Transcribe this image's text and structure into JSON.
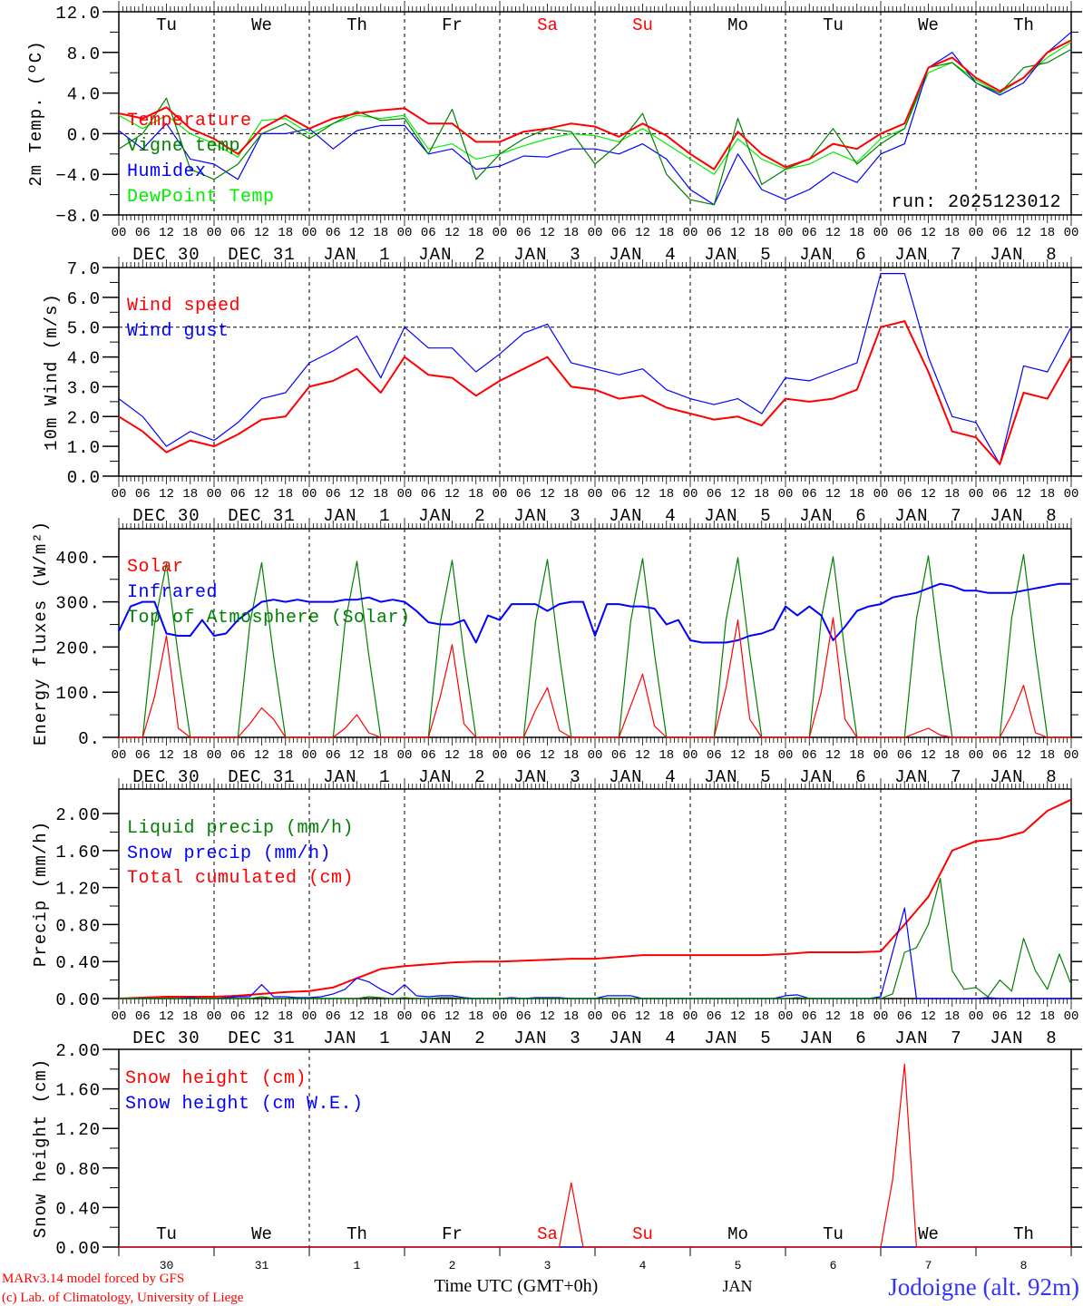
{
  "time_axis": {
    "hour_labels": [
      "00",
      "06",
      "12",
      "18"
    ],
    "final_hour_label": "00",
    "date_labels": [
      "DEC 30",
      "DEC 31",
      "JAN  1",
      "JAN  2",
      "JAN  3",
      "JAN  4",
      "JAN  5",
      "JAN  6",
      "JAN  7",
      "JAN  8"
    ],
    "weekdays": [
      "Tu",
      "We",
      "Th",
      "Fr",
      "Sa",
      "Su",
      "Mo",
      "Tu",
      "We",
      "Th"
    ],
    "weekend_flags": [
      false,
      false,
      false,
      false,
      true,
      true,
      false,
      false,
      false,
      false
    ],
    "day_numbers": [
      "30",
      "31",
      "1",
      "2",
      "3",
      "4",
      "5",
      "6",
      "7",
      "8"
    ],
    "month_label": "JAN",
    "xlabel": "Time UTC (GMT+0h)",
    "weekday_color": "#000000",
    "weekend_color": "#ff0000"
  },
  "footer": {
    "model": "MARv3.14 model forced by GFS",
    "copyright": "(c) Lab. of Climatology, University of Liege",
    "station": "Jodoigne (alt. 92m)"
  },
  "chart_data": [
    {
      "type": "line",
      "ylabel": "2m Temp. (ºC)",
      "ylim": [
        -8,
        12
      ],
      "yticks": [
        -8,
        -4,
        0,
        4,
        8,
        12
      ],
      "yticklabels": [
        "−8.0",
        "−4.0",
        "0.0",
        "4.0",
        "8.0",
        "12.0"
      ],
      "ref_line": 0,
      "annotation": "run: 2025123012",
      "step_hours": 6,
      "series": [
        {
          "name": "Temperature",
          "color": "#ff0000",
          "values": [
            2.0,
            1.5,
            2.6,
            0.5,
            -0.5,
            -2.0,
            0.5,
            1.8,
            0.5,
            1.5,
            2.0,
            2.3,
            2.5,
            1.0,
            1.0,
            -0.8,
            -0.8,
            0.2,
            0.5,
            1.0,
            0.7,
            -0.3,
            1.0,
            -0.2,
            -2.0,
            -3.5,
            0.2,
            -2.0,
            -3.3,
            -2.5,
            -1.0,
            -1.5,
            0.0,
            1.0,
            6.5,
            7.5,
            5.5,
            4.2,
            5.5,
            8.0,
            9.2
          ]
        },
        {
          "name": "Vigne temp",
          "color": "#008000",
          "values": [
            -1.5,
            0.0,
            3.5,
            -3.5,
            -4.5,
            -3.0,
            0.0,
            1.0,
            -0.5,
            1.0,
            2.2,
            1.3,
            1.5,
            -2.0,
            2.4,
            -4.5,
            -2.0,
            -0.5,
            0.5,
            0.2,
            -3.0,
            -1.0,
            2.0,
            -4.0,
            -6.5,
            -7.0,
            1.5,
            -5.0,
            -3.5,
            -2.5,
            0.5,
            -3.0,
            -1.0,
            0.5,
            6.5,
            7.0,
            5.0,
            4.0,
            6.5,
            7.0,
            8.3
          ]
        },
        {
          "name": "Humidex",
          "color": "#0000ff",
          "values": [
            0.3,
            -1.5,
            1.0,
            -2.5,
            -3.0,
            -4.5,
            0.0,
            0.0,
            0.5,
            -1.5,
            0.3,
            0.8,
            0.8,
            -2.0,
            -1.5,
            -3.5,
            -3.2,
            -2.2,
            -2.3,
            -1.5,
            -1.5,
            -2.0,
            -1.0,
            -2.5,
            -5.5,
            -7.0,
            -2.0,
            -5.5,
            -6.5,
            -5.5,
            -3.8,
            -4.8,
            -2.0,
            -1.0,
            6.5,
            8.0,
            5.0,
            3.8,
            5.0,
            8.0,
            10.0
          ]
        },
        {
          "name": "DewPoint Temp",
          "color": "#00ee00",
          "values": [
            1.8,
            0.5,
            1.8,
            0.0,
            -1.0,
            -2.3,
            1.3,
            1.5,
            0.0,
            1.0,
            1.8,
            1.5,
            1.8,
            -1.5,
            -1.0,
            -2.5,
            -2.0,
            -1.2,
            -0.5,
            0.0,
            -0.2,
            -0.8,
            0.5,
            -1.0,
            -2.5,
            -4.0,
            -0.5,
            -2.5,
            -3.5,
            -3.0,
            -1.8,
            -2.8,
            -0.5,
            0.5,
            6.0,
            7.0,
            5.3,
            4.0,
            5.5,
            7.5,
            9.0
          ]
        }
      ]
    },
    {
      "type": "line",
      "ylabel": "10m Wind (m/s)",
      "ylim": [
        0,
        7
      ],
      "yticks": [
        0,
        1,
        2,
        3,
        4,
        5,
        6,
        7
      ],
      "yticklabels": [
        "0.0",
        "1.0",
        "2.0",
        "3.0",
        "4.0",
        "5.0",
        "6.0",
        "7.0"
      ],
      "ref_line": 5,
      "step_hours": 6,
      "series": [
        {
          "name": "Wind speed",
          "color": "#ff0000",
          "values": [
            2.0,
            1.5,
            0.8,
            1.2,
            1.0,
            1.4,
            1.9,
            2.0,
            3.0,
            3.2,
            3.6,
            2.8,
            4.0,
            3.4,
            3.3,
            2.7,
            3.2,
            3.6,
            4.0,
            3.0,
            2.9,
            2.6,
            2.7,
            2.3,
            2.1,
            1.9,
            2.0,
            1.7,
            2.6,
            2.5,
            2.6,
            2.9,
            5.0,
            5.2,
            3.5,
            1.5,
            1.3,
            0.4,
            2.8,
            2.6,
            4.0
          ]
        },
        {
          "name": "Wind gust",
          "color": "#0000ff",
          "values": [
            2.6,
            2.0,
            1.0,
            1.5,
            1.2,
            1.8,
            2.6,
            2.8,
            3.8,
            4.2,
            4.7,
            3.3,
            5.0,
            4.3,
            4.3,
            3.5,
            4.1,
            4.8,
            5.1,
            3.8,
            3.6,
            3.4,
            3.6,
            2.9,
            2.6,
            2.4,
            2.6,
            2.1,
            3.3,
            3.2,
            3.5,
            3.8,
            6.8,
            6.8,
            4.0,
            2.0,
            1.8,
            0.4,
            3.7,
            3.5,
            5.0
          ]
        }
      ]
    },
    {
      "type": "line",
      "ylabel": "Energy fluxes (W/m²)",
      "ylim": [
        0,
        462
      ],
      "yticks": [
        0,
        100,
        200,
        300,
        400
      ],
      "yticklabels": [
        "0.",
        "100.",
        "200.",
        "300.",
        "400."
      ],
      "step_hours": 3,
      "series": [
        {
          "name": "Solar",
          "color": "#ff0000",
          "values": [
            0,
            0,
            0,
            90,
            225,
            20,
            0,
            0,
            0,
            0,
            0,
            30,
            65,
            40,
            0,
            0,
            0,
            0,
            0,
            20,
            50,
            10,
            0,
            0,
            0,
            0,
            0,
            90,
            205,
            30,
            0,
            0,
            0,
            0,
            0,
            60,
            110,
            15,
            0,
            0,
            0,
            0,
            0,
            70,
            140,
            25,
            0,
            0,
            0,
            0,
            0,
            110,
            260,
            40,
            0,
            0,
            0,
            0,
            0,
            100,
            265,
            40,
            0,
            0,
            0,
            0,
            0,
            10,
            20,
            5,
            0,
            0,
            0,
            0,
            0,
            50,
            115,
            10,
            0,
            0,
            0
          ]
        },
        {
          "name": "Infrared",
          "color": "#0000ff",
          "values": [
            235,
            290,
            300,
            300,
            230,
            225,
            225,
            260,
            225,
            230,
            260,
            280,
            300,
            305,
            300,
            305,
            300,
            300,
            300,
            305,
            305,
            310,
            300,
            305,
            300,
            280,
            255,
            250,
            250,
            260,
            210,
            270,
            260,
            295,
            295,
            295,
            280,
            295,
            300,
            300,
            225,
            295,
            295,
            290,
            290,
            285,
            250,
            260,
            215,
            210,
            210,
            210,
            215,
            225,
            230,
            240,
            290,
            270,
            290,
            270,
            215,
            245,
            280,
            290,
            295,
            310,
            315,
            320,
            330,
            340,
            335,
            325,
            325,
            320,
            320,
            320,
            325,
            330,
            335,
            340,
            340
          ]
        },
        {
          "name": "Top of Atmosphere (Solar)",
          "color": "#008000",
          "values": [
            0,
            0,
            0,
            250,
            385,
            180,
            0,
            0,
            0,
            0,
            0,
            250,
            387,
            180,
            0,
            0,
            0,
            0,
            0,
            252,
            390,
            182,
            0,
            0,
            0,
            0,
            0,
            254,
            392,
            183,
            0,
            0,
            0,
            0,
            0,
            256,
            394,
            184,
            0,
            0,
            0,
            0,
            0,
            258,
            396,
            185,
            0,
            0,
            0,
            0,
            0,
            260,
            398,
            186,
            0,
            0,
            0,
            0,
            0,
            262,
            400,
            187,
            0,
            0,
            0,
            0,
            0,
            263,
            402,
            188,
            0,
            0,
            0,
            0,
            0,
            265,
            405,
            190,
            0,
            0,
            0
          ]
        }
      ]
    },
    {
      "type": "line",
      "ylabel": "Precip (mm/h)",
      "ylim": [
        0,
        2.265
      ],
      "yticks": [
        0,
        0.4,
        0.8,
        1.2,
        1.6,
        2.0
      ],
      "yticklabels": [
        "0.00",
        "0.40",
        "0.80",
        "1.20",
        "1.60",
        "2.00"
      ],
      "step_hours": 3,
      "series": [
        {
          "name": "Liquid precip (mm/h)",
          "color": "#008000",
          "values": [
            0,
            0,
            0,
            0,
            0,
            0,
            0,
            0,
            0,
            0,
            0,
            0,
            0.02,
            0,
            0,
            0,
            0,
            0,
            0,
            0,
            0,
            0.02,
            0.01,
            0,
            0.01,
            0,
            0,
            0.01,
            0.01,
            0,
            0,
            0,
            0,
            0,
            0,
            0,
            0,
            0,
            0,
            0,
            0,
            0,
            0,
            0,
            0,
            0,
            0,
            0,
            0,
            0,
            0,
            0,
            0,
            0,
            0,
            0,
            0,
            0.01,
            0,
            0,
            0,
            0,
            0,
            0,
            0,
            0.05,
            0.5,
            0.55,
            0.8,
            1.3,
            0.3,
            0.1,
            0.12,
            0.02,
            0.2,
            0.08,
            0.65,
            0.3,
            0.1,
            0.48,
            0.15
          ]
        },
        {
          "name": "Snow precip (mm/h)",
          "color": "#0000ff",
          "values": [
            0,
            0,
            0,
            0,
            0,
            0,
            0.01,
            0,
            0,
            0.01,
            0.02,
            0.02,
            0.15,
            0.02,
            0.02,
            0.01,
            0.01,
            0.02,
            0.05,
            0.1,
            0.22,
            0.18,
            0.1,
            0.04,
            0.15,
            0.03,
            0.02,
            0.03,
            0.03,
            0.01,
            0,
            0,
            0,
            0.01,
            0,
            0.01,
            0.01,
            0.01,
            0,
            0,
            0,
            0.03,
            0.03,
            0.03,
            0,
            0,
            0,
            0,
            0,
            0,
            0,
            0,
            0,
            0,
            0,
            0,
            0.03,
            0.04,
            0,
            0,
            0,
            0,
            0,
            0,
            0.02,
            0.5,
            0.98,
            0,
            0,
            0,
            0,
            0,
            0,
            0.01,
            0,
            0,
            0,
            0,
            0,
            0,
            0
          ]
        },
        {
          "name": "Total cumulated (cm)",
          "color": "#ff0000",
          "values": [
            0,
            0.01,
            0.02,
            0.02,
            0.02,
            0.03,
            0.05,
            0.07,
            0.08,
            0.12,
            0.22,
            0.32,
            0.35,
            0.37,
            0.39,
            0.4,
            0.4,
            0.41,
            0.42,
            0.43,
            0.43,
            0.45,
            0.47,
            0.47,
            0.47,
            0.47,
            0.47,
            0.47,
            0.48,
            0.5,
            0.5,
            0.5,
            0.51,
            0.8,
            1.1,
            1.6,
            1.7,
            1.73,
            1.8,
            2.03,
            2.15
          ],
          "step_hours": 6
        }
      ]
    },
    {
      "type": "line",
      "ylabel": "Snow height (cm)",
      "ylim": [
        0,
        2
      ],
      "yticks": [
        0,
        0.4,
        0.8,
        1.2,
        1.6,
        2.0
      ],
      "yticklabels": [
        "0.00",
        "0.40",
        "0.80",
        "1.20",
        "1.60",
        "2.00"
      ],
      "step_hours": 3,
      "series": [
        {
          "name": "Snow height (cm)",
          "color": "#ff0000",
          "values": [
            0,
            0,
            0,
            0,
            0,
            0,
            0,
            0,
            0,
            0,
            0,
            0,
            0,
            0,
            0,
            0,
            0,
            0,
            0,
            0,
            0,
            0,
            0,
            0,
            0,
            0,
            0,
            0,
            0,
            0,
            0,
            0,
            0,
            0,
            0,
            0,
            0,
            0,
            0.65,
            0,
            0,
            0,
            0,
            0,
            0,
            0,
            0,
            0,
            0,
            0,
            0,
            0,
            0,
            0,
            0,
            0,
            0,
            0,
            0,
            0,
            0,
            0,
            0,
            0,
            0,
            0.68,
            1.85,
            0,
            0,
            0,
            0,
            0,
            0,
            0,
            0,
            0,
            0,
            0,
            0,
            0,
            0
          ]
        },
        {
          "name": "Snow height (cm W.E.)",
          "color": "#0000ff",
          "values": [
            0,
            0,
            0,
            0,
            0,
            0,
            0,
            0,
            0,
            0,
            0,
            0,
            0,
            0,
            0,
            0,
            0,
            0,
            0,
            0,
            0,
            0,
            0,
            0,
            0,
            0,
            0,
            0,
            0,
            0,
            0,
            0,
            0,
            0,
            0,
            0,
            0,
            0,
            0,
            0,
            0,
            0,
            0,
            0,
            0,
            0,
            0,
            0,
            0,
            0,
            0,
            0,
            0,
            0,
            0,
            0,
            0,
            0,
            0,
            0,
            0,
            0,
            0,
            0,
            0,
            0,
            0,
            0,
            0,
            0,
            0,
            0,
            0,
            0,
            0,
            0,
            0,
            0,
            0,
            0,
            0
          ]
        }
      ]
    }
  ]
}
